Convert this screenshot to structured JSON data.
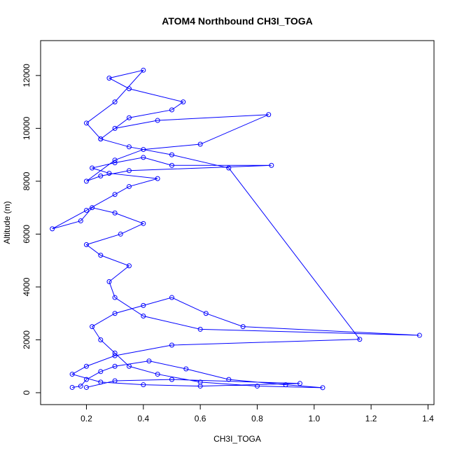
{
  "chart_data": {
    "type": "line",
    "title": "ATOM4 Northbound CH3I_TOGA",
    "x_label": "CH3I_TOGA",
    "y_label": "Altitude (m)",
    "xlim": [
      0.039,
      1.421
    ],
    "ylim": [
      -450,
      13320
    ],
    "xticks": [
      0.2,
      0.4,
      0.6,
      0.8,
      {
        "value": 1,
        "label": "1.0"
      },
      1.2,
      1.4
    ],
    "yticks": [
      0,
      2000,
      4000,
      6000,
      8000,
      10000,
      12000
    ],
    "series": [
      {
        "color": "#0000ff",
        "x": [
          0.15,
          0.18,
          0.2,
          0.25,
          0.3,
          0.42,
          0.55,
          0.7,
          0.9,
          1.03,
          0.8,
          0.6,
          0.45,
          0.35,
          0.3,
          0.25,
          0.22,
          0.3,
          0.4,
          0.5,
          0.62,
          0.75,
          1.37,
          0.6,
          0.4,
          0.3,
          0.28,
          0.35,
          0.25,
          0.2,
          0.32,
          0.4,
          0.3,
          0.22,
          0.18,
          0.08,
          0.2,
          0.3,
          0.35,
          0.45,
          0.28,
          0.22,
          0.3,
          0.4,
          0.5,
          0.85,
          0.35,
          0.25,
          0.2,
          0.3,
          0.4,
          0.6,
          0.84,
          0.45,
          0.3,
          0.25,
          0.35,
          0.5,
          0.54,
          0.35,
          0.28,
          0.4,
          0.3,
          0.2,
          0.25,
          0.35,
          0.5,
          0.7,
          1.16,
          0.5,
          0.3,
          0.2,
          0.15,
          0.25,
          0.4,
          0.6,
          0.95,
          0.5,
          0.3,
          0.2
        ],
        "values": [
          200,
          250,
          500,
          800,
          1000,
          1200,
          900,
          500,
          300,
          190,
          250,
          400,
          700,
          1000,
          1500,
          2000,
          2500,
          3000,
          3300,
          3600,
          3000,
          2500,
          2170,
          2400,
          2900,
          3600,
          4200,
          4800,
          5200,
          5600,
          6000,
          6400,
          6800,
          7000,
          6500,
          6200,
          6900,
          7500,
          7800,
          8100,
          8300,
          8500,
          8700,
          8900,
          8600,
          8600,
          8400,
          8200,
          8000,
          8800,
          9200,
          9400,
          10520,
          10300,
          10000,
          9600,
          10400,
          10700,
          11000,
          11500,
          11900,
          12200,
          11000,
          10200,
          9600,
          9300,
          9000,
          8500,
          2020,
          1800,
          1400,
          1000,
          700,
          400,
          300,
          250,
          350,
          500,
          450,
          200
        ]
      }
    ]
  }
}
